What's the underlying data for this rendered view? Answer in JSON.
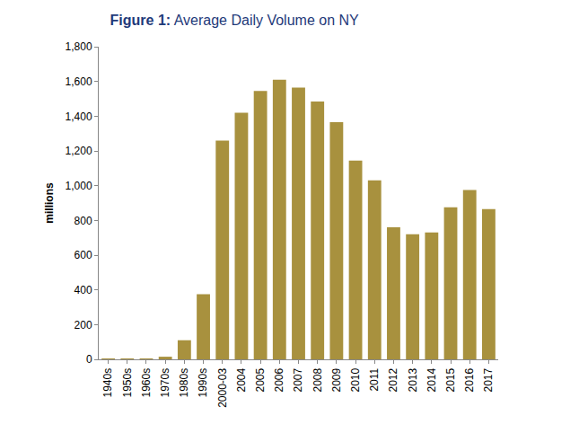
{
  "chart_data": {
    "type": "bar",
    "title": "Figure 1: Average Daily Volume on NY",
    "y_label": "millions",
    "categories": [
      "1940s",
      "1950s",
      "1960s",
      "1970s",
      "1980s",
      "1990s",
      "2000-03",
      "2004",
      "2005",
      "2006",
      "2007",
      "2008",
      "2009",
      "2010",
      "2011",
      "2012",
      "2013",
      "2014",
      "2015",
      "2016",
      "2017"
    ],
    "values": [
      1,
      2,
      4,
      15,
      110,
      375,
      1260,
      1420,
      1545,
      1610,
      1565,
      1485,
      1365,
      1145,
      1030,
      760,
      720,
      730,
      875,
      975,
      865
    ],
    "color": "#a8913e",
    "ylim": [
      0,
      1800
    ],
    "yticks": [
      0,
      200,
      400,
      600,
      800,
      {
        "value": 1000,
        "label": "1,000"
      },
      {
        "value": 1200,
        "label": "1,200"
      },
      {
        "value": 1400,
        "label": "1,400"
      },
      {
        "value": 1600,
        "label": "1,600"
      },
      {
        "value": 1800,
        "label": "1,800"
      }
    ],
    "grid": false
  }
}
